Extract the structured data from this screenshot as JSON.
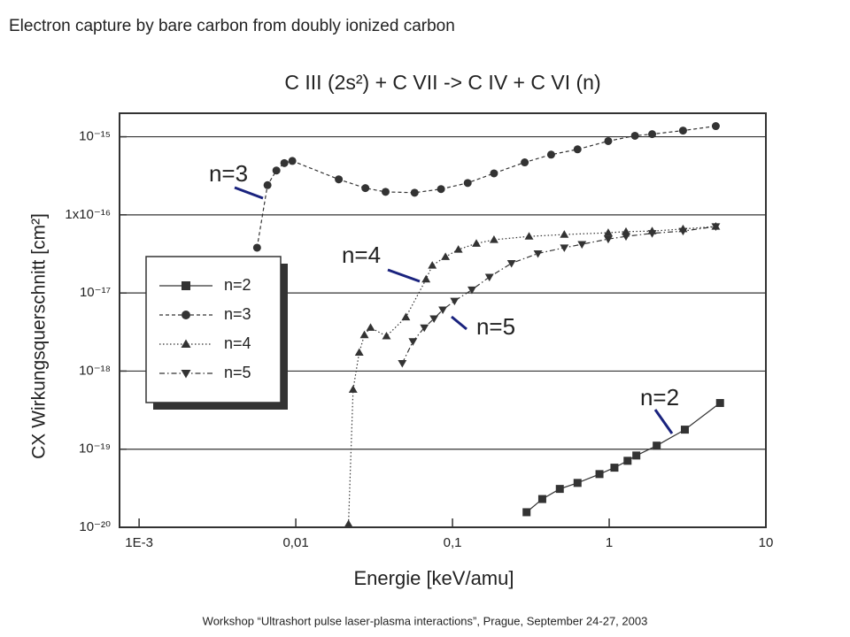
{
  "slide": {
    "title": "Electron capture by bare carbon from doubly ionized carbon",
    "footer": "Workshop “Ultrashort pulse laser-plasma interactions”, Prague, September 24-27, 2003"
  },
  "chart_data": {
    "type": "line",
    "title": "C III (2s²) + C VII -> C IV + C VI (n)",
    "x_label": "Energie [keV/amu]",
    "y_label": "CX Wirkungsquerschnitt [cm²]",
    "x_scale": "log",
    "y_scale": "log",
    "xlim": [
      0.00075,
      10
    ],
    "ylim": [
      1e-20,
      2e-15
    ],
    "xticks": [
      {
        "value": 0.001,
        "label": "1E-3"
      },
      {
        "value": 0.01,
        "label": "0,01"
      },
      {
        "value": 0.1,
        "label": "0,1"
      },
      1,
      10
    ],
    "yticks": [
      {
        "value": 1e-15,
        "label": "10⁻¹⁵"
      },
      {
        "value": 1e-16,
        "label": "1x10⁻¹⁶"
      },
      {
        "value": 1e-17,
        "label": "10⁻¹⁷"
      },
      {
        "value": 1e-18,
        "label": "10⁻¹⁸"
      },
      {
        "value": 1e-19,
        "label": "10⁻¹⁹"
      },
      {
        "value": 1e-20,
        "label": "10⁻²⁰"
      }
    ],
    "grid": true,
    "legend": "left",
    "series": [
      {
        "name": "n=2",
        "color": "#333333",
        "marker": "square",
        "line": "solid",
        "x": [
          0.297,
          0.374,
          0.484,
          0.628,
          0.867,
          1.08,
          1.31,
          1.49,
          2.01,
          3.04,
          5.1
        ],
        "values": [
          1.56e-20,
          2.3e-20,
          3.1e-20,
          3.7e-20,
          4.8e-20,
          5.8e-20,
          7.1e-20,
          8.3e-20,
          1.11e-19,
          1.78e-19,
          3.9e-19
        ]
      },
      {
        "name": "n=3",
        "color": "#333333",
        "marker": "circle",
        "line": "dashed",
        "x": [
          0.00566,
          0.0066,
          0.00752,
          0.00845,
          0.0095,
          0.0188,
          0.0278,
          0.0374,
          0.0573,
          0.0845,
          0.125,
          0.184,
          0.289,
          0.426,
          0.628,
          0.986,
          1.46,
          1.88,
          2.96,
          4.79
        ],
        "values": [
          3.8e-17,
          2.4e-16,
          3.7e-16,
          4.6e-16,
          4.9e-16,
          2.85e-16,
          2.2e-16,
          1.97e-16,
          1.92e-16,
          2.14e-16,
          2.56e-16,
          3.4e-16,
          4.7e-16,
          5.9e-16,
          6.9e-16,
          8.8e-16,
          1.03e-15,
          1.08e-15,
          1.2e-15,
          1.37e-15
        ]
      },
      {
        "name": "n=4",
        "color": "#333333",
        "marker": "triangle",
        "line": "dotted",
        "x": [
          0.0217,
          0.0232,
          0.0254,
          0.0274,
          0.03,
          0.0379,
          0.0504,
          0.0678,
          0.0743,
          0.0902,
          0.109,
          0.142,
          0.184,
          0.308,
          0.517,
          0.986,
          1.28,
          1.88,
          2.96,
          4.79
        ],
        "values": [
          1.1e-20,
          5.8e-19,
          1.73e-18,
          2.9e-18,
          3.6e-18,
          2.8e-18,
          4.9e-18,
          1.5e-17,
          2.25e-17,
          2.9e-17,
          3.6e-17,
          4.3e-17,
          4.8e-17,
          5.3e-17,
          5.6e-17,
          5.9e-17,
          6.1e-17,
          6.2e-17,
          6.6e-17,
          7.1e-17
        ]
      },
      {
        "name": "n=5",
        "color": "#333333",
        "marker": "triangle-down",
        "line": "dashdot",
        "x": [
          0.0478,
          0.0559,
          0.0661,
          0.0762,
          0.0867,
          0.103,
          0.133,
          0.172,
          0.238,
          0.351,
          0.517,
          0.67,
          0.986,
          1.28,
          1.88,
          2.96,
          4.79
        ],
        "values": [
          1.26e-18,
          2.4e-18,
          3.6e-18,
          4.7e-18,
          6.1e-18,
          7.9e-18,
          1.1e-17,
          1.6e-17,
          2.4e-17,
          3.2e-17,
          3.8e-17,
          4.2e-17,
          4.9e-17,
          5.3e-17,
          5.8e-17,
          6.2e-17,
          7.1e-17
        ]
      }
    ],
    "annotations": [
      {
        "text": "n=3"
      },
      {
        "text": "n=4"
      },
      {
        "text": "n=5"
      },
      {
        "text": "n=2"
      }
    ]
  }
}
